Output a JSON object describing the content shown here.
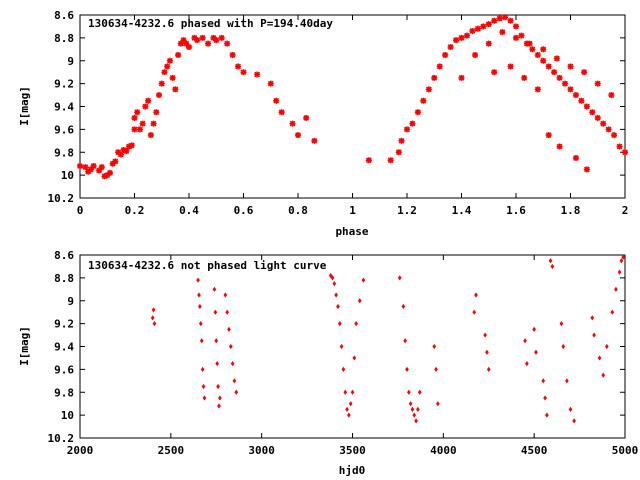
{
  "chart_data": [
    {
      "type": "scatter",
      "title": "130634-4232.6 phased with P=194.40day",
      "xlabel": "phase",
      "ylabel": "I[mag]",
      "xlim": [
        0,
        2
      ],
      "ylim": [
        10.2,
        8.6
      ],
      "y_inverted": true,
      "marker": "star",
      "color": "#ff0000",
      "xticks": [
        "0",
        "0.2",
        "0.4",
        "0.6",
        "0.8",
        "1",
        "1.2",
        "1.4",
        "1.6",
        "1.8",
        "2"
      ],
      "yticks": [
        "8.6",
        "8.8",
        "9",
        "9.2",
        "9.4",
        "9.6",
        "9.8",
        "10",
        "10.2"
      ],
      "series": [
        {
          "x": [
            0.0,
            0.02,
            0.03,
            0.04,
            0.05,
            0.07,
            0.08,
            0.09,
            0.1,
            0.11,
            0.12,
            0.13,
            0.14,
            0.15,
            0.16,
            0.17,
            0.18,
            0.19,
            0.2,
            0.2,
            0.21,
            0.22,
            0.23,
            0.24,
            0.25,
            0.26,
            0.27,
            0.28,
            0.29,
            0.3,
            0.31,
            0.32,
            0.33,
            0.34,
            0.35,
            0.36,
            0.37,
            0.38,
            0.39,
            0.4,
            0.42,
            0.43,
            0.45,
            0.47,
            0.49,
            0.5,
            0.52,
            0.54,
            0.56,
            0.58,
            0.6,
            0.65,
            0.7,
            0.72,
            0.74,
            0.78,
            0.8,
            0.83,
            0.86,
            1.06,
            1.14,
            1.17,
            1.18,
            1.2,
            1.22,
            1.24,
            1.26,
            1.28,
            1.3,
            1.32,
            1.34,
            1.36,
            1.38,
            1.4,
            1.42,
            1.44,
            1.46,
            1.48,
            1.5,
            1.52,
            1.54,
            1.56,
            1.58,
            1.6,
            1.62,
            1.64,
            1.66,
            1.68,
            1.7,
            1.72,
            1.74,
            1.76,
            1.78,
            1.8,
            1.82,
            1.84,
            1.86,
            1.88,
            1.9,
            1.92,
            1.94,
            1.96,
            1.98,
            2.0,
            1.55,
            1.6,
            1.65,
            1.7,
            1.75,
            1.8,
            1.85,
            1.9,
            1.95,
            1.72,
            1.76,
            1.82,
            1.86,
            1.4,
            1.45,
            1.5,
            1.52,
            1.58,
            1.63,
            1.68
          ],
          "y": [
            9.92,
            9.93,
            9.97,
            9.95,
            9.92,
            9.96,
            9.93,
            10.01,
            10.0,
            9.98,
            9.9,
            9.88,
            9.8,
            9.82,
            9.78,
            9.79,
            9.75,
            9.74,
            9.6,
            9.5,
            9.45,
            9.6,
            9.55,
            9.4,
            9.35,
            9.65,
            9.55,
            9.45,
            9.3,
            9.2,
            9.1,
            9.05,
            9.0,
            9.15,
            9.25,
            8.95,
            8.85,
            8.82,
            8.85,
            8.88,
            8.8,
            8.82,
            8.8,
            8.85,
            8.8,
            8.82,
            8.8,
            8.85,
            8.95,
            9.05,
            9.1,
            9.12,
            9.2,
            9.35,
            9.45,
            9.55,
            9.65,
            9.5,
            9.7,
            9.87,
            9.87,
            9.8,
            9.7,
            9.6,
            9.55,
            9.45,
            9.35,
            9.25,
            9.15,
            9.05,
            8.95,
            8.88,
            8.82,
            8.8,
            8.78,
            8.74,
            8.72,
            8.7,
            8.68,
            8.65,
            8.63,
            8.62,
            8.65,
            8.7,
            8.78,
            8.85,
            8.9,
            8.95,
            9.0,
            9.05,
            9.1,
            9.15,
            9.2,
            9.25,
            9.3,
            9.35,
            9.4,
            9.45,
            9.5,
            9.55,
            9.6,
            9.65,
            9.75,
            9.8,
            8.75,
            8.8,
            8.85,
            8.9,
            8.98,
            9.05,
            9.1,
            9.2,
            9.3,
            9.65,
            9.75,
            9.85,
            9.95,
            9.15,
            8.95,
            8.85,
            9.1,
            9.05,
            9.15,
            9.25
          ],
          "name": ""
        }
      ]
    },
    {
      "type": "scatter",
      "title": "130634-4232.6 not phased light curve",
      "xlabel": "hjd0",
      "ylabel": "I[mag]",
      "xlim": [
        2000,
        5000
      ],
      "ylim": [
        10.2,
        8.6
      ],
      "y_inverted": true,
      "marker": "diamond",
      "color": "#ff0000",
      "xticks": [
        "2000",
        "2500",
        "3000",
        "3500",
        "4000",
        "4500",
        "5000"
      ],
      "yticks": [
        "8.6",
        "8.8",
        "9",
        "9.2",
        "9.4",
        "9.6",
        "9.8",
        "10",
        "10.2"
      ],
      "series": [
        {
          "x": [
            2400,
            2405,
            2410,
            2650,
            2655,
            2660,
            2665,
            2670,
            2675,
            2680,
            2685,
            2740,
            2745,
            2750,
            2755,
            2760,
            2765,
            2770,
            2800,
            2810,
            2820,
            2830,
            2840,
            2850,
            2860,
            3380,
            3390,
            3400,
            3410,
            3420,
            3430,
            3440,
            3450,
            3460,
            3470,
            3480,
            3490,
            3500,
            3510,
            3520,
            3540,
            3560,
            3760,
            3780,
            3790,
            3800,
            3810,
            3820,
            3830,
            3840,
            3850,
            3860,
            3870,
            3950,
            3960,
            3970,
            4170,
            4180,
            4230,
            4240,
            4250,
            4450,
            4460,
            4500,
            4510,
            4550,
            4560,
            4570,
            4590,
            4600,
            4650,
            4660,
            4680,
            4700,
            4720,
            4820,
            4830,
            4860,
            4880,
            4900,
            4930,
            4950,
            4970,
            4980,
            4990
          ],
          "y": [
            9.15,
            9.08,
            9.2,
            8.82,
            8.95,
            9.05,
            9.2,
            9.35,
            9.6,
            9.75,
            9.85,
            8.9,
            9.1,
            9.35,
            9.55,
            9.75,
            9.92,
            9.85,
            8.95,
            9.1,
            9.25,
            9.4,
            9.55,
            9.7,
            9.8,
            8.78,
            8.8,
            8.85,
            8.95,
            9.05,
            9.2,
            9.4,
            9.6,
            9.8,
            9.95,
            10.0,
            9.9,
            9.8,
            9.5,
            9.2,
            9.0,
            8.82,
            8.8,
            9.05,
            9.35,
            9.6,
            9.8,
            9.9,
            9.95,
            10.0,
            10.05,
            9.95,
            9.8,
            9.4,
            9.6,
            9.9,
            9.1,
            8.95,
            9.3,
            9.45,
            9.6,
            9.35,
            9.55,
            9.25,
            9.45,
            9.7,
            9.85,
            10.0,
            8.65,
            8.7,
            9.2,
            9.4,
            9.7,
            9.95,
            10.05,
            9.15,
            9.3,
            9.5,
            9.65,
            9.4,
            9.1,
            8.9,
            8.75,
            8.65,
            8.62
          ],
          "name": ""
        }
      ]
    }
  ]
}
